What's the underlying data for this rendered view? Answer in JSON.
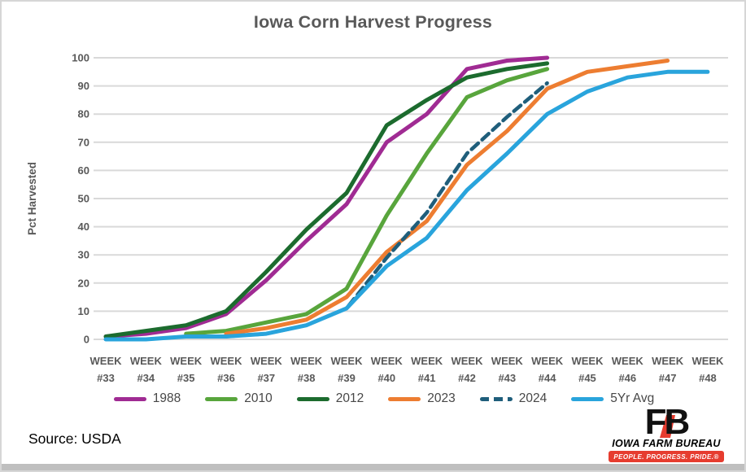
{
  "title": "Iowa Corn Harvest Progress",
  "chart_data": {
    "type": "line",
    "title": "Iowa Corn Harvest Progress",
    "xlabel": "",
    "ylabel": "Pct Harvested",
    "ylim": [
      0,
      100
    ],
    "yticks": [
      0,
      10,
      20,
      30,
      40,
      50,
      60,
      70,
      80,
      90,
      100
    ],
    "grid": "horizontal",
    "legend_position": "bottom",
    "week_label_prefix": "WEEK",
    "categories": [
      "#33",
      "#34",
      "#35",
      "#36",
      "#37",
      "#38",
      "#39",
      "#40",
      "#41",
      "#42",
      "#43",
      "#44",
      "#45",
      "#46",
      "#47",
      "#48"
    ],
    "first_week": 33,
    "series": [
      {
        "name": "1988",
        "color": "#A02B93",
        "dash": false,
        "start_week": 33,
        "values": [
          1,
          2,
          4,
          9,
          21,
          35,
          48,
          70,
          80,
          96,
          99,
          100
        ]
      },
      {
        "name": "2010",
        "color": "#58A53C",
        "dash": false,
        "start_week": 35,
        "values": [
          2,
          3,
          6,
          9,
          18,
          44,
          66,
          86,
          92,
          96
        ]
      },
      {
        "name": "2012",
        "color": "#1C6B2E",
        "dash": false,
        "start_week": 33,
        "values": [
          1,
          3,
          5,
          10,
          24,
          39,
          52,
          76,
          85,
          93,
          96,
          98
        ]
      },
      {
        "name": "2023",
        "color": "#ED7D31",
        "dash": false,
        "start_week": 36,
        "values": [
          2,
          4,
          7,
          15,
          31,
          42,
          62,
          74,
          89,
          95,
          97,
          99
        ]
      },
      {
        "name": "2024",
        "color": "#1F5E7B",
        "dash": true,
        "start_week": 36,
        "values": [
          1,
          2,
          5,
          11,
          29,
          45,
          66,
          79,
          91
        ]
      },
      {
        "name": "5Yr Avg",
        "color": "#29A4DC",
        "dash": false,
        "start_week": 33,
        "values": [
          0,
          0,
          1,
          1,
          2,
          5,
          11,
          26,
          36,
          53,
          66,
          80,
          88,
          93,
          95,
          95
        ]
      }
    ]
  },
  "colors": {
    "grid": "#D9D9D9",
    "axis_text": "#595959",
    "title_text": "#595959",
    "legend_text": "#474747",
    "logo_red": "#E63C2F"
  },
  "footer": {
    "source": "Source: USDA"
  },
  "logo": {
    "monogram": "FB",
    "name": "IOWA FARM BUREAU",
    "tagline": "PEOPLE. PROGRESS. PRIDE.®"
  }
}
